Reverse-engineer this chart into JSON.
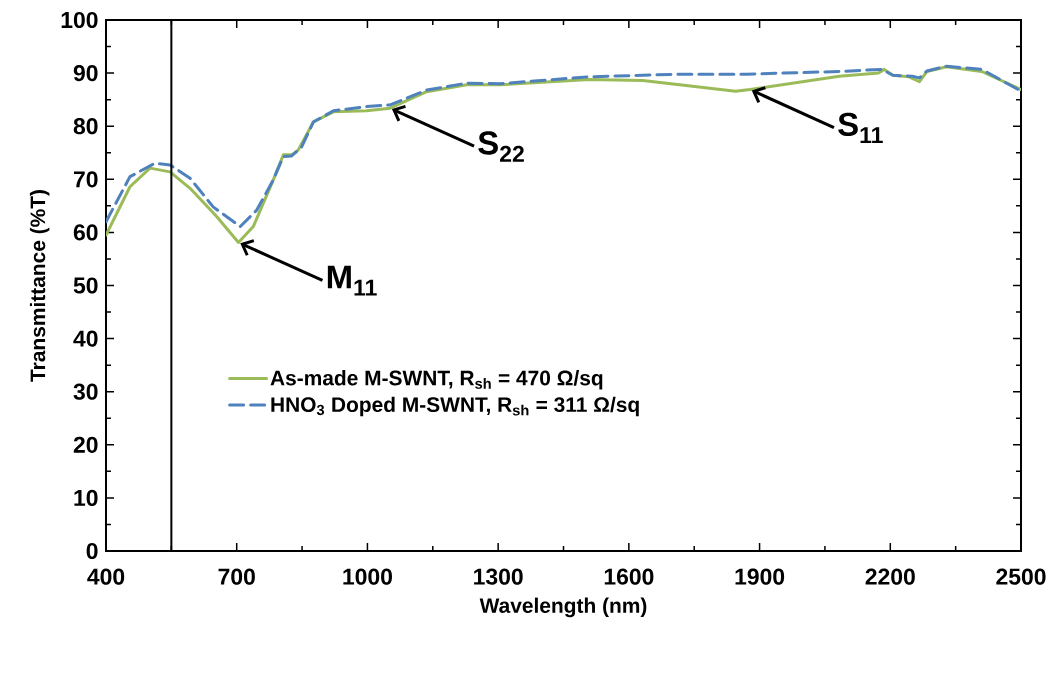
{
  "chart_data": {
    "type": "line",
    "xlabel": "Wavelength (nm)",
    "ylabel": "Transmittance (%T)",
    "xlim": [
      400,
      2500
    ],
    "xticks": [
      400,
      700,
      1000,
      1300,
      1600,
      1900,
      2200,
      2500
    ],
    "ylim": [
      0,
      100
    ],
    "yticks": [
      0,
      10,
      20,
      30,
      40,
      50,
      60,
      70,
      80,
      90,
      100
    ],
    "grid": false,
    "legend": "left",
    "marker": "none",
    "series": [
      {
        "name": "As-made M-SWNT, R$_{sh}$ = 470 Ω/sq",
        "color": "#9bbb59",
        "line_style": "solid",
        "x": [
          400,
          455,
          501,
          547,
          593,
          654,
          704,
          738,
          784,
          807,
          826,
          841,
          876,
          922,
          998,
          1052,
          1136,
          1228,
          1305,
          1509,
          1632,
          1845,
          1878,
          2083,
          2173,
          2186,
          2206,
          2243,
          2267,
          2284,
          2329,
          2410,
          2500
        ],
        "values": [
          59.5,
          68.6,
          72.1,
          71.4,
          68.3,
          63.0,
          58.1,
          61.1,
          69.9,
          74.6,
          74.6,
          75.5,
          80.8,
          82.7,
          82.9,
          83.4,
          86.5,
          87.8,
          87.8,
          88.8,
          88.6,
          86.6,
          86.9,
          89.4,
          90.0,
          90.7,
          89.6,
          89.3,
          88.4,
          90.3,
          91.2,
          90.3,
          86.9
        ]
      },
      {
        "name": "HNO$_{3}$ Doped M-SWNT, R$_{sh}$ = 311 Ω/sq",
        "color": "#4f81bd",
        "line_style": "dashed",
        "x": [
          400,
          455,
          512,
          547,
          593,
          646,
          708,
          746,
          784,
          807,
          826,
          849,
          876,
          922,
          998,
          1052,
          1136,
          1228,
          1305,
          1509,
          1714,
          1870,
          2083,
          2180,
          2206,
          2250,
          2267,
          2284,
          2329,
          2410,
          2500
        ],
        "values": [
          62.0,
          70.5,
          73.0,
          72.7,
          70.2,
          64.8,
          61.1,
          64.2,
          69.9,
          74.3,
          74.4,
          76.1,
          80.8,
          82.9,
          83.7,
          84.0,
          86.8,
          88.1,
          88.0,
          89.3,
          89.8,
          89.8,
          90.3,
          90.7,
          89.6,
          89.4,
          89.1,
          90.4,
          91.3,
          90.7,
          86.6
        ]
      }
    ],
    "ref_lines": [
      {
        "axis": "x",
        "value": 550,
        "color": "#000000"
      }
    ],
    "annotations": [
      {
        "text": "M$_{11}$",
        "x": 704,
        "y": 58.1
      },
      {
        "text": "S$_{22}$",
        "x": 1052,
        "y": 83.4
      },
      {
        "text": "S$_{11}$",
        "x": 1878,
        "y": 86.9
      }
    ]
  }
}
